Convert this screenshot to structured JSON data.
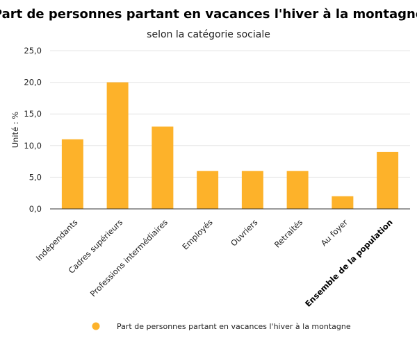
{
  "chart_data": {
    "type": "bar",
    "title": "Part de personnes partant en vacances l'hiver à la montagne",
    "subtitle": "selon la catégorie sociale",
    "ylabel": "Unité : %",
    "xlabel": "",
    "ylim": [
      0,
      25
    ],
    "yticks": [
      "0,0",
      "5,0",
      "10,0",
      "15,0",
      "20,0",
      "25,0"
    ],
    "ytick_values": [
      0,
      5,
      10,
      15,
      20,
      25
    ],
    "grid": true,
    "legend_position": "bottom",
    "color": "#FDB22A",
    "categories": [
      "Indépendants",
      "Cadres supérieurs",
      "Professions intermédiaires",
      "Employés",
      "Ouvriers",
      "Retraités",
      "Au foyer",
      "Ensemble de la population"
    ],
    "bold_categories": [
      "Ensemble de la population"
    ],
    "series": [
      {
        "name": "Part de personnes partant en vacances l'hiver à la montagne",
        "values": [
          11,
          20,
          13,
          6,
          6,
          6,
          2,
          9
        ]
      }
    ]
  }
}
